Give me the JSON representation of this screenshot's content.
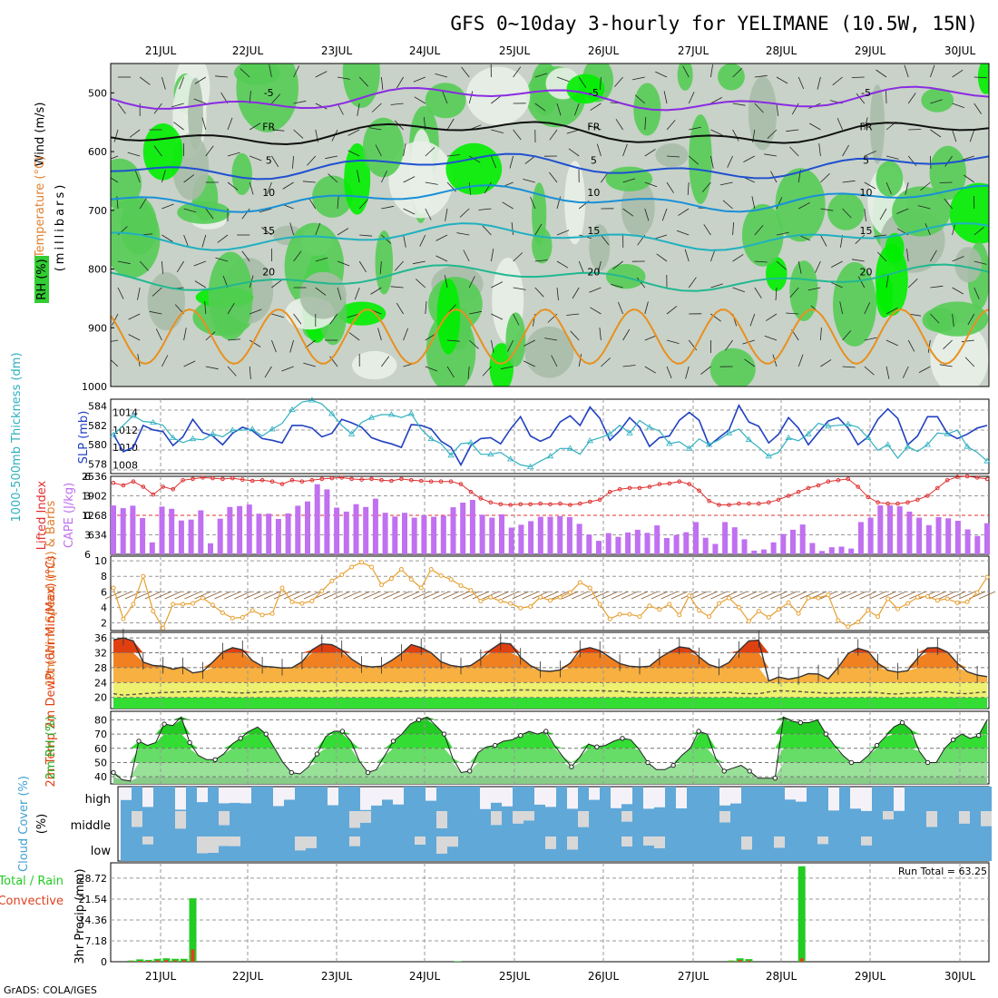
{
  "title": "GFS 0~10day 3-hourly for YELIMANE (10.5W, 15N)",
  "credit": "GrADS: COLA/IGES",
  "dates": [
    "21JUL",
    "22JUL",
    "23JUL",
    "24JUL",
    "25JUL",
    "26JUL",
    "27JUL",
    "28JUL",
    "29JUL",
    "30JUL"
  ],
  "colors": {
    "rh_green": "#33cc33",
    "rh_bright": "#00ee00",
    "rh_gray": "#c8d2c8",
    "slp": "#2040c0",
    "thickness": "#30b0c0",
    "lifted_index": "#e03030",
    "cape": "#c070f0",
    "wind_speed": "#e8a030",
    "temp_hot": "#e04010",
    "rh_2m": "#22cc22",
    "cloud": "#60a8d8",
    "precip_total": "#22cc22",
    "precip_conv": "#e04020"
  },
  "chart_data": [
    {
      "type": "heatmap",
      "name": "upper-air cross section",
      "labels": [
        "RH (%)",
        "Temperature (°C)",
        "Wind (m/s)"
      ],
      "ylabel": "(millibars)",
      "y_ticks": [
        500,
        600,
        700,
        800,
        900,
        1000
      ],
      "ylim": [
        1000,
        450
      ],
      "contour_labels": [
        "-5",
        "FR",
        "5",
        "10",
        "15",
        "20"
      ],
      "isotherms": [
        {
          "label": "-5",
          "level_mb": 510
        },
        {
          "label": "FR",
          "level_mb": 568
        },
        {
          "label": "5",
          "level_mb": 625
        },
        {
          "label": "10",
          "level_mb": 680
        },
        {
          "label": "15",
          "level_mb": 745
        },
        {
          "label": "20",
          "level_mb": 815
        }
      ]
    },
    {
      "type": "line",
      "name": "SLP and thickness",
      "ylabel_left": "1000-500mb Thickness (dm)",
      "ylabel_right": "SLP (mb)",
      "left_ticks": [
        578,
        580,
        582,
        584
      ],
      "right_ticks": [
        1008,
        1010,
        1012,
        1014
      ],
      "series": [
        {
          "name": "SLP",
          "values": [
            1011.5,
            1009.5,
            1010,
            1012.5,
            1012,
            1011.8,
            1010.2,
            1011.2,
            1013.2,
            1011.7,
            1011.3,
            1010.3,
            1011.6,
            1012.3,
            1011.9,
            1011.0,
            1010.8,
            1010.5,
            1012.5,
            1012.5,
            1012.2,
            1011.2,
            1011.6,
            1013.2,
            1012.8,
            1012.3,
            1011.1,
            1010.7,
            1010.4,
            1010.0,
            1012.6,
            1012.5,
            1012.1,
            1010.7,
            1010.0,
            1008.0,
            1010.2,
            1011.0,
            1011.1,
            1010.4,
            1012.1,
            1013.5,
            1011.3,
            1010.7,
            1011.2,
            1012.9,
            1013.6,
            1012.5,
            1014.6,
            1013.3,
            1010.8,
            1011.9,
            1013.4,
            1012.3,
            1010.1,
            1011.1,
            1011.3,
            1013.1,
            1014.0,
            1013.1,
            1010.2,
            1011.1,
            1012.0,
            1014.8,
            1012.9,
            1012.4,
            1010.5,
            1011.5,
            1013.4,
            1012.2,
            1010.3,
            1011.7,
            1013.0,
            1013.4,
            1012.2,
            1010.3,
            1011.2,
            1013.2,
            1014.4,
            1013.3,
            1010.3,
            1011.3,
            1013.5,
            1013.5,
            1011.6,
            1011.0,
            1011.5,
            1012.2,
            1012.5
          ]
        },
        {
          "name": "Thickness",
          "values": [
            581.0,
            582.0,
            583.0,
            582.4,
            582.3,
            582.0,
            580.7,
            580.2,
            580.6,
            580.5,
            581.1,
            580.8,
            581.5,
            581.5,
            581.6,
            580.9,
            581.6,
            582.2,
            583.6,
            584.4,
            584.6,
            584.2,
            583.2,
            582.0,
            581.1,
            582.3,
            582.8,
            583.1,
            583.1,
            582.8,
            583.2,
            581.6,
            580.6,
            580.1,
            578.9,
            580.1,
            580.2,
            579.0,
            579.0,
            579.2,
            578.5,
            577.9,
            577.7,
            578.3,
            578.8,
            579.6,
            579.6,
            579.0,
            580.4,
            580.7,
            581.1,
            582.0,
            581.2,
            582.5,
            581.8,
            581.4,
            580.1,
            580.3,
            579.6,
            580.6,
            580.0,
            580.5,
            581.2,
            581.6,
            580.5,
            579.7,
            578.8,
            579.2,
            580.7,
            580.4,
            581.1,
            582.2,
            581.9,
            582.0,
            582.1,
            581.8,
            580.7,
            579.4,
            580.0,
            578.6,
            579.8,
            579.3,
            580.0,
            581.2,
            581.1,
            581.5,
            579.8,
            579.2,
            578.3
          ]
        }
      ]
    },
    {
      "type": "bar",
      "name": "Lifted index and CAPE",
      "ylabel_left": "Lifted Index",
      "ylabel_right": "CAPE (J/kg)",
      "left_ticks": [
        -6,
        -3,
        0,
        3,
        6
      ],
      "right_ticks": [
        634,
        1268,
        1902,
        2536
      ],
      "cape": [
        1590,
        1500,
        1580,
        1180,
        390,
        1550,
        1480,
        1100,
        1130,
        1430,
        360,
        1160,
        1540,
        1570,
        1620,
        1320,
        1320,
        1150,
        1330,
        1580,
        1720,
        2280,
        2110,
        1520,
        1390,
        1630,
        1540,
        1810,
        1350,
        1230,
        1350,
        1190,
        1270,
        1220,
        1260,
        1530,
        1680,
        1770,
        1290,
        1190,
        1300,
        870,
        960,
        1080,
        1220,
        1220,
        1240,
        1210,
        990,
        640,
        440,
        690,
        570,
        710,
        800,
        700,
        940,
        530,
        630,
        720,
        1050,
        540,
        340,
        1050,
        880,
        490,
        120,
        160,
        390,
        660,
        800,
        970,
        370,
        110,
        230,
        250,
        190,
        1050,
        1190,
        1590,
        1590,
        1560,
        1390,
        1190,
        950,
        1210,
        1170,
        1090,
        810,
        600,
        1010
      ],
      "lifted_index": [
        -5.0,
        -4.6,
        -5.2,
        -4.4,
        -3.2,
        -4.4,
        -4.0,
        -5.4,
        -5.6,
        -5.8,
        -5.7,
        -5.6,
        -5.7,
        -5.5,
        -5.3,
        -5.4,
        -5.2,
        -4.8,
        -5.4,
        -5.2,
        -5.4,
        -5.6,
        -5.7,
        -5.8,
        -5.6,
        -5.5,
        -5.6,
        -5.4,
        -5.3,
        -5.6,
        -5.4,
        -5.3,
        -5.2,
        -5.2,
        -5.2,
        -4.8,
        -3.6,
        -2.6,
        -2.0,
        -1.7,
        -1.6,
        -1.7,
        -1.7,
        -1.8,
        -1.7,
        -1.8,
        -1.6,
        -1.8,
        -2.1,
        -2.4,
        -3.6,
        -4.0,
        -4.2,
        -4.2,
        -4.4,
        -4.8,
        -4.9,
        -5.2,
        -4.8,
        -3.8,
        -2.2,
        -1.6,
        -1.6,
        -1.8,
        -1.8,
        -1.8,
        -2.0,
        -2.4,
        -3.0,
        -3.6,
        -4.2,
        -4.6,
        -5.2,
        -5.4,
        -5.6,
        -4.4,
        -2.8,
        -2.0,
        -1.8,
        -1.8,
        -2.0,
        -2.4,
        -3.0,
        -4.2,
        -5.4,
        -5.9,
        -6.0,
        -5.8,
        -5.6
      ]
    },
    {
      "type": "line",
      "name": "10m wind",
      "ylabel": "10m Wind Speed (m/s) & Barbs",
      "y_ticks": [
        2,
        4,
        6,
        8,
        10
      ],
      "ylim": [
        1,
        10
      ],
      "values": [
        6.5,
        2.5,
        4.4,
        8.0,
        3.5,
        1.3,
        4.4,
        4.4,
        4.5,
        5.2,
        4.3,
        3.3,
        2.6,
        2.7,
        3.6,
        3.0,
        3.2,
        6.5,
        4.7,
        4.5,
        4.8,
        6.1,
        7.4,
        8.2,
        9.2,
        9.8,
        9.2,
        6.9,
        7.7,
        8.9,
        7.6,
        6.5,
        8.9,
        8.1,
        7.6,
        6.8,
        6.2,
        4.8,
        5.3,
        4.8,
        4.5,
        3.9,
        4.1,
        5.3,
        4.9,
        5.3,
        5.9,
        7.2,
        6.5,
        4.4,
        2.5,
        3.1,
        3.1,
        2.8,
        4.2,
        3.7,
        4.4,
        3.0,
        5.5,
        3.6,
        2.8,
        4.5,
        5.2,
        4.0,
        2.2,
        3.5,
        2.7,
        3.7,
        4.6,
        3.2,
        5.2,
        5.2,
        5.6,
        2.3,
        1.5,
        2.1,
        3.6,
        2.8,
        5.1,
        3.8,
        4.5,
        5.3,
        5.4,
        4.9,
        5.1,
        4.6,
        4.7,
        5.9,
        7.9
      ]
    },
    {
      "type": "area",
      "name": "2m temperature",
      "ylabel": "2m Temp 2m DewPt (6hr Min/Max) (°C)",
      "y_ticks": [
        20,
        24,
        28,
        32,
        36
      ],
      "ylim": [
        17,
        37
      ],
      "temp": [
        35.5,
        36.0,
        35.2,
        29.5,
        28.6,
        28.4,
        27.6,
        28.2,
        26.6,
        27.0,
        29.5,
        32.2,
        33.4,
        32.8,
        29.9,
        28.4,
        28.2,
        27.9,
        28.0,
        29.6,
        32.8,
        34.4,
        34.2,
        32.8,
        30.3,
        28.6,
        28.2,
        28.4,
        29.9,
        31.8,
        34.2,
        33.4,
        32.0,
        29.6,
        28.6,
        28.2,
        28.6,
        30.4,
        32.8,
        34.6,
        34.4,
        30.8,
        28.6,
        27.2,
        27.0,
        27.4,
        29.2,
        32.8,
        33.4,
        32.6,
        30.8,
        29.1,
        28.4,
        28.2,
        28.4,
        30.6,
        32.2,
        33.6,
        33.2,
        30.9,
        28.8,
        28.0,
        29.4,
        32.6,
        35.2,
        35.4,
        24.4,
        25.5,
        24.9,
        25.4,
        26.4,
        26.3,
        25.0,
        28.1,
        31.8,
        33.2,
        32.4,
        29.2,
        27.3,
        26.8,
        27.2,
        30.6,
        33.3,
        33.4,
        32.2,
        29.2,
        26.9,
        26.0,
        25.6
      ],
      "dewpoint": [
        21.0,
        20.6,
        20.8,
        21.0,
        21.2,
        21.3,
        21.4,
        21.5,
        21.6,
        21.6,
        21.7,
        21.5,
        21.3,
        21.2,
        21.3,
        21.5,
        21.5,
        21.6,
        21.8,
        21.8,
        21.7,
        21.6,
        21.8,
        21.9,
        21.8,
        21.8,
        21.9,
        21.9,
        21.8,
        21.6,
        21.8,
        21.9,
        21.9,
        21.8,
        21.8,
        21.9,
        21.9,
        21.8,
        21.7,
        21.8,
        22.0,
        22.0,
        22.0,
        21.9,
        21.9,
        21.9,
        21.9,
        21.8,
        21.8,
        21.8,
        21.7,
        21.7,
        21.5,
        21.3,
        21.3,
        21.3,
        21.3,
        21.1,
        21.2,
        21.2,
        21.2,
        21.3,
        21.4,
        21.1,
        21.0,
        21.0,
        21.5,
        21.8,
        21.7,
        21.6,
        21.4,
        21.3,
        21.1,
        21.2,
        21.3,
        21.3,
        21.4,
        21.3,
        21.0,
        20.9,
        21.2,
        21.2,
        21.5,
        21.6,
        21.4,
        21.1,
        21.0,
        21.3,
        21.5
      ]
    },
    {
      "type": "area",
      "name": "2m relative humidity",
      "ylabel": "2m RH (%)",
      "y_ticks": [
        40,
        50,
        60,
        70,
        80
      ],
      "ylim": [
        35,
        85
      ],
      "values": [
        43,
        38,
        37,
        65,
        62,
        64,
        77,
        76,
        82,
        64,
        55,
        52,
        52,
        56,
        63,
        67,
        72,
        75,
        70,
        60,
        50,
        43,
        42,
        47,
        56,
        68,
        72,
        72,
        65,
        51,
        43,
        45,
        55,
        65,
        70,
        77,
        80,
        82,
        76,
        70,
        53,
        43,
        44,
        57,
        61,
        62,
        65,
        66,
        69,
        72,
        70,
        72,
        62,
        54,
        47,
        54,
        63,
        61,
        62,
        65,
        67,
        66,
        59,
        50,
        45,
        45,
        48,
        55,
        60,
        72,
        70,
        53,
        44,
        46,
        48,
        44,
        39,
        39,
        39,
        82,
        79,
        78,
        78,
        80,
        70,
        62,
        55,
        50,
        50,
        55,
        62,
        68,
        75,
        78,
        73,
        58,
        50,
        50,
        60,
        66,
        70,
        67,
        69,
        80
      ]
    },
    {
      "type": "bar",
      "name": "Cloud cover",
      "ylabel": "Cloud Cover (%)",
      "levels": [
        "high",
        "middle",
        "low"
      ]
    },
    {
      "type": "bar",
      "name": "3hr precipitation",
      "ylabel": "3hr Precip (mm)",
      "legend": [
        "Total / Rain",
        "Convective"
      ],
      "annotation": "Run Total = 63.25",
      "y_ticks": [
        0,
        7.18,
        14.36,
        21.54,
        28.72
      ],
      "ylim": [
        0,
        34
      ],
      "total": [
        0,
        0,
        0.4,
        0.8,
        0.6,
        1.0,
        1.2,
        1.0,
        1.0,
        21.8,
        0,
        0,
        0,
        0,
        0,
        0,
        0,
        0,
        0,
        0,
        0,
        0,
        0,
        0,
        0,
        0,
        0,
        0,
        0,
        0,
        0,
        0,
        0,
        0,
        0,
        0,
        0,
        0,
        0,
        0.2,
        0,
        0,
        0,
        0,
        0,
        0,
        0,
        0,
        0,
        0,
        0,
        0,
        0,
        0,
        0,
        0,
        0,
        0,
        0,
        0,
        0,
        0,
        0,
        0,
        0,
        0,
        0,
        0,
        0,
        0,
        0.4,
        1.2,
        0.9,
        0,
        0,
        0,
        0,
        0,
        32.8,
        0,
        0,
        0,
        0,
        0,
        0,
        0,
        0,
        0,
        0,
        0,
        0,
        0,
        0,
        0,
        0,
        0,
        0,
        0,
        0,
        0
      ],
      "convective": [
        0,
        0,
        0.2,
        0.3,
        0.3,
        0.5,
        0.6,
        0.4,
        0.5,
        4.2,
        0,
        0,
        0,
        0,
        0,
        0,
        0,
        0,
        0,
        0,
        0,
        0,
        0,
        0,
        0,
        0,
        0,
        0,
        0,
        0,
        0,
        0,
        0,
        0,
        0,
        0,
        0,
        0,
        0,
        0,
        0,
        0,
        0,
        0,
        0,
        0,
        0,
        0,
        0,
        0,
        0,
        0,
        0,
        0,
        0,
        0,
        0,
        0,
        0,
        0,
        0,
        0,
        0,
        0,
        0,
        0,
        0,
        0,
        0,
        0,
        0.2,
        0.6,
        0.4,
        0,
        0,
        0,
        0,
        0,
        1.2,
        0,
        0,
        0,
        0,
        0,
        0,
        0,
        0,
        0,
        0,
        0,
        0,
        0,
        0,
        0,
        0,
        0,
        0,
        0,
        0,
        0
      ]
    }
  ]
}
